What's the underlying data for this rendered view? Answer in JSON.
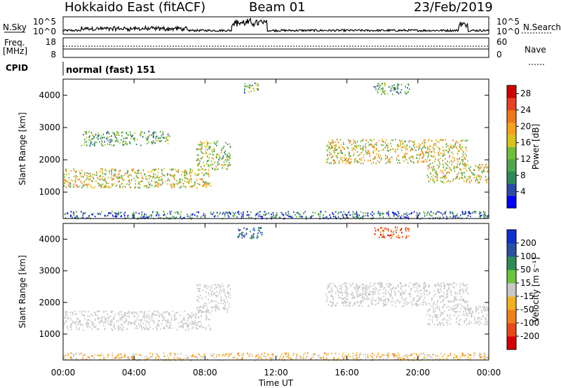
{
  "header": {
    "title": "Hokkaido East (fitACF)",
    "beam": "Beam 01",
    "date": "23/Feb/2019"
  },
  "strips": {
    "nsky_label": "N.Sky",
    "nsky_ticks": [
      "10^5",
      "10^0"
    ],
    "nsky_right_ticks": [
      "10^5",
      "10^0"
    ],
    "nsearch_label": "N.Search",
    "freq_label": "Freq.",
    "freq_unit": "[MHz]",
    "freq_ticks": [
      "18",
      "8"
    ],
    "nave_label": "Nave",
    "nave_ticks": [
      "60",
      "0"
    ],
    "cpid_label": "CPID",
    "cpid_text": "normal (fast) 151"
  },
  "chart_data": [
    {
      "type": "heatmap",
      "title": "",
      "xlabel": "Time UT",
      "ylabel": "Slant Range [km]",
      "x_ticks": [
        "00:00",
        "04:00",
        "08:00",
        "12:00",
        "16:00",
        "20:00",
        "00:00"
      ],
      "y_ticks": [
        1000,
        2000,
        3000,
        4000
      ],
      "ylim": [
        180,
        4500
      ],
      "colorbar": {
        "label": "Power [dB]",
        "ticks": [
          4,
          8,
          12,
          16,
          20,
          24,
          28
        ],
        "range": [
          0,
          30
        ],
        "colors": [
          "#0000ff",
          "#2a4aa8",
          "#2e8b57",
          "#4fa64f",
          "#6fbf3a",
          "#d9c21a",
          "#f5a020",
          "#f07818",
          "#e84020",
          "#d00000"
        ]
      },
      "regions": [
        {
          "t": [
            0.0,
            8.3
          ],
          "r": [
            1150,
            1750
          ],
          "v": 16
        },
        {
          "t": [
            7.5,
            9.4
          ],
          "r": [
            1700,
            2600
          ],
          "v": 14
        },
        {
          "t": [
            14.8,
            22.8
          ],
          "r": [
            1900,
            2650
          ],
          "v": 17
        },
        {
          "t": [
            20.5,
            24.0
          ],
          "r": [
            1300,
            1900
          ],
          "v": 16
        },
        {
          "t": [
            0.0,
            24.0
          ],
          "r": [
            190,
            420
          ],
          "v": 6
        },
        {
          "t": [
            1.0,
            6.0
          ],
          "r": [
            2450,
            2900
          ],
          "v": 10
        },
        {
          "t": [
            10.2,
            11.0
          ],
          "r": [
            4100,
            4400
          ],
          "v": 9
        },
        {
          "t": [
            17.5,
            19.5
          ],
          "r": [
            4050,
            4400
          ],
          "v": 10
        }
      ]
    },
    {
      "type": "heatmap",
      "title": "",
      "xlabel": "Time UT",
      "ylabel": "Slant Range [km]",
      "x_ticks": [
        "00:00",
        "04:00",
        "08:00",
        "12:00",
        "16:00",
        "20:00",
        "00:00"
      ],
      "y_ticks": [
        1000,
        2000,
        3000,
        4000
      ],
      "ylim": [
        180,
        4500
      ],
      "colorbar": {
        "label": "Velocity [m s⁻¹]",
        "ticks": [
          200,
          100,
          50,
          15,
          -15,
          -50,
          -100,
          -200
        ],
        "range": [
          -250,
          250
        ],
        "colors": [
          "#1030d0",
          "#2a50a0",
          "#2e8b57",
          "#6cc43a",
          "#c8c8c8",
          "#f5b020",
          "#f08018",
          "#e84818",
          "#d80000"
        ]
      },
      "regions": [
        {
          "t": [
            0.0,
            8.3
          ],
          "r": [
            1150,
            1750
          ],
          "v": 0
        },
        {
          "t": [
            7.5,
            9.4
          ],
          "r": [
            1700,
            2600
          ],
          "v": 0
        },
        {
          "t": [
            14.8,
            22.8
          ],
          "r": [
            1900,
            2650
          ],
          "v": 0
        },
        {
          "t": [
            20.5,
            24.0
          ],
          "r": [
            1300,
            1900
          ],
          "v": 0
        },
        {
          "t": [
            0.0,
            24.0
          ],
          "r": [
            190,
            420
          ],
          "v": -40
        },
        {
          "t": [
            17.5,
            19.5
          ],
          "r": [
            4050,
            4400
          ],
          "v": -150
        },
        {
          "t": [
            9.8,
            11.2
          ],
          "r": [
            4050,
            4400
          ],
          "v": 150
        }
      ]
    }
  ]
}
